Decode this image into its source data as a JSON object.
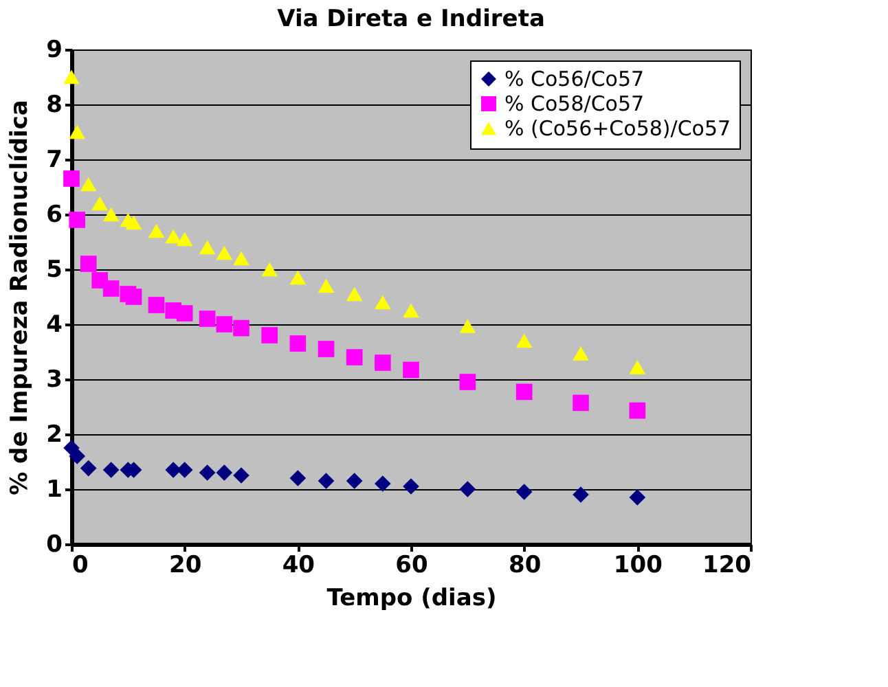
{
  "chart_data": {
    "type": "scatter",
    "title": "Via Direta e Indireta",
    "xlabel": "Tempo (dias)",
    "ylabel": "% de Impureza Radionuclídica",
    "x": [
      0,
      1,
      3,
      5,
      7,
      10,
      11,
      15,
      18,
      20,
      24,
      27,
      30,
      35,
      40,
      45,
      50,
      55,
      60,
      70,
      80,
      90,
      100
    ],
    "series": [
      {
        "name": "% Co56/Co57",
        "color": "#000080",
        "marker": "diamond",
        "values": [
          1.75,
          1.6,
          1.38,
          null,
          1.35,
          1.35,
          1.35,
          null,
          1.35,
          1.35,
          1.3,
          1.3,
          1.25,
          null,
          1.2,
          1.15,
          1.15,
          1.1,
          1.05,
          1.0,
          0.95,
          0.9,
          0.85
        ]
      },
      {
        "name": "% Co58/Co57",
        "color": "#ff00ff",
        "marker": "square",
        "values": [
          6.65,
          5.9,
          5.1,
          4.8,
          4.65,
          4.55,
          4.5,
          4.35,
          4.25,
          4.2,
          4.1,
          4.0,
          3.93,
          3.8,
          3.65,
          3.55,
          3.4,
          3.3,
          3.17,
          2.95,
          2.77,
          2.57,
          2.43
        ]
      },
      {
        "name": "% (Co56+Co58)/Co57",
        "color": "#ffff00",
        "marker": "triangle",
        "values": [
          8.5,
          7.5,
          6.55,
          6.2,
          6.0,
          5.9,
          5.85,
          5.7,
          5.6,
          5.55,
          5.4,
          5.3,
          5.2,
          5.0,
          4.85,
          4.7,
          4.55,
          4.4,
          4.25,
          3.97,
          3.7,
          3.47,
          3.22
        ]
      }
    ],
    "xlim": [
      0,
      120
    ],
    "xticks": [
      0,
      20,
      40,
      60,
      80,
      100,
      120
    ],
    "ylim": [
      0,
      9
    ],
    "yticks": [
      0,
      1,
      2,
      3,
      4,
      5,
      6,
      7,
      8,
      9
    ],
    "grid": "y",
    "legend": "top right"
  }
}
